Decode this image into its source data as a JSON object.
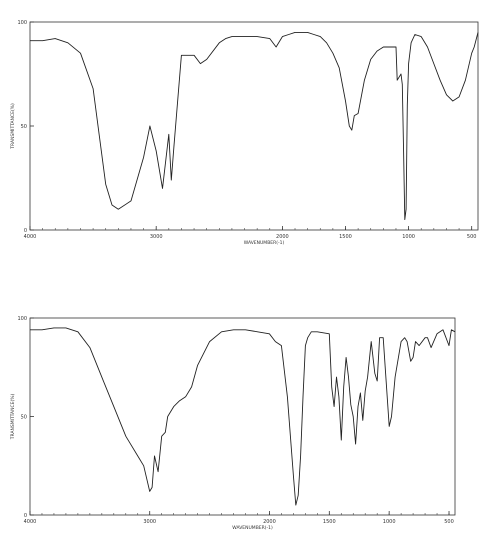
{
  "chart_data": [
    {
      "type": "line",
      "xlabel": "WAVENUMBER(-1)",
      "ylabel": "TRANSMITTANCE(%)",
      "xlim": [
        4000,
        450
      ],
      "ylim": [
        0,
        100
      ],
      "x_ticks": [
        4000,
        3000,
        2000,
        1500,
        1000,
        500
      ],
      "y_ticks": [
        0,
        50,
        100
      ],
      "grid": false,
      "series": [
        {
          "x": [
            4000,
            3900,
            3800,
            3700,
            3600,
            3500,
            3450,
            3400,
            3350,
            3300,
            3200,
            3100,
            3050,
            3000,
            2950,
            2900,
            2880,
            2860,
            2800,
            2700,
            2650,
            2600,
            2500,
            2450,
            2400,
            2300,
            2200,
            2100,
            2050,
            2000,
            1950,
            1900,
            1850,
            1800,
            1750,
            1700,
            1650,
            1600,
            1550,
            1500,
            1470,
            1450,
            1430,
            1400,
            1350,
            1300,
            1250,
            1200,
            1150,
            1100,
            1090,
            1060,
            1050,
            1040,
            1030,
            1020,
            1010,
            1000,
            980,
            950,
            900,
            850,
            800,
            750,
            700,
            650,
            600,
            550,
            500,
            480,
            450
          ],
          "y": [
            91,
            91,
            92,
            90,
            85,
            68,
            45,
            22,
            12,
            10,
            14,
            35,
            50,
            38,
            20,
            46,
            24,
            40,
            84,
            84,
            80,
            82,
            90,
            92,
            93,
            93,
            93,
            92,
            88,
            93,
            94,
            95,
            95,
            95,
            94,
            93,
            90,
            85,
            78,
            62,
            50,
            48,
            55,
            56,
            72,
            82,
            86,
            88,
            88,
            88,
            72,
            75,
            70,
            40,
            5,
            10,
            60,
            80,
            90,
            94,
            93,
            88,
            80,
            72,
            65,
            62,
            64,
            72,
            85,
            88,
            95
          ]
        }
      ]
    },
    {
      "type": "line",
      "xlabel": "WAVENUMBER(-1)",
      "ylabel": "TRANSMITTANCE(%)",
      "xlim": [
        4000,
        450
      ],
      "ylim": [
        0,
        100
      ],
      "x_ticks": [
        4000,
        3000,
        2000,
        1500,
        1000,
        500
      ],
      "y_ticks": [
        0,
        50,
        100
      ],
      "grid": false,
      "series": [
        {
          "x": [
            4000,
            3900,
            3800,
            3700,
            3600,
            3500,
            3400,
            3300,
            3200,
            3100,
            3050,
            3000,
            2980,
            2960,
            2930,
            2900,
            2870,
            2850,
            2800,
            2750,
            2700,
            2650,
            2600,
            2500,
            2400,
            2300,
            2200,
            2100,
            2000,
            1950,
            1900,
            1850,
            1800,
            1780,
            1760,
            1740,
            1720,
            1700,
            1680,
            1650,
            1600,
            1500,
            1480,
            1460,
            1440,
            1420,
            1400,
            1380,
            1360,
            1340,
            1320,
            1300,
            1280,
            1260,
            1240,
            1220,
            1200,
            1180,
            1150,
            1120,
            1100,
            1080,
            1050,
            1000,
            980,
            950,
            900,
            870,
            850,
            820,
            800,
            780,
            750,
            700,
            680,
            650,
            600,
            550,
            500,
            480,
            450
          ],
          "y": [
            94,
            94,
            95,
            95,
            93,
            85,
            70,
            55,
            40,
            30,
            25,
            12,
            14,
            30,
            22,
            40,
            42,
            50,
            55,
            58,
            60,
            65,
            76,
            88,
            93,
            94,
            94,
            93,
            92,
            88,
            86,
            60,
            20,
            5,
            10,
            30,
            60,
            86,
            90,
            93,
            93,
            92,
            65,
            55,
            70,
            60,
            38,
            65,
            80,
            70,
            56,
            50,
            36,
            55,
            62,
            48,
            63,
            70,
            88,
            72,
            68,
            90,
            90,
            45,
            50,
            70,
            88,
            90,
            88,
            78,
            80,
            88,
            86,
            90,
            90,
            85,
            92,
            94,
            86,
            94,
            93
          ]
        }
      ]
    }
  ]
}
